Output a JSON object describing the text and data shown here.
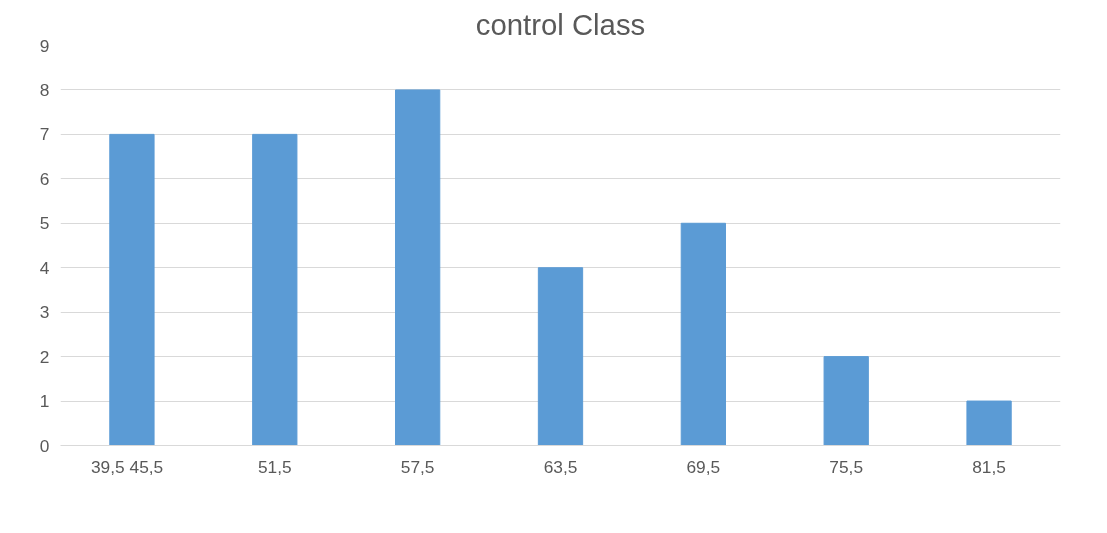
{
  "chart_data": {
    "type": "bar",
    "title": "control Class",
    "categories": [
      "39,5   45,5",
      "51,5",
      "57,5",
      "63,5",
      "69,5",
      "75,5",
      "81,5"
    ],
    "values": [
      7,
      7,
      8,
      4,
      5,
      2,
      1
    ],
    "color": "#5b9bd5",
    "ylim": [
      0,
      9
    ],
    "yticks": [
      0,
      1,
      2,
      3,
      4,
      5,
      6,
      7,
      8,
      9
    ],
    "grid": "y"
  }
}
